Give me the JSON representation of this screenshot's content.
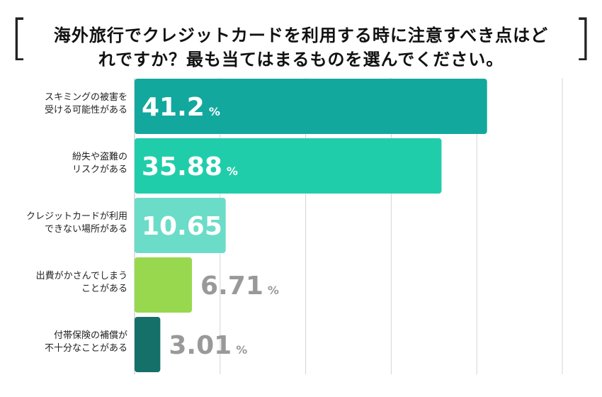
{
  "title": {
    "line1": "海外旅行でクレジットカードを利用する時に注意すべき点はど",
    "line2": "れですか？最も当てはまるものを選んでください。",
    "bracket_open": "[",
    "bracket_close": "]"
  },
  "chart_data": {
    "type": "bar",
    "orientation": "horizontal",
    "categories": [
      [
        "スキミングの被害を",
        "受ける可能性がある"
      ],
      [
        "紛失や盗難の",
        "リスクがある"
      ],
      [
        "クレジットカードが利用",
        "できない場所がある"
      ],
      [
        "出費がかさんでしまう",
        "ことがある"
      ],
      [
        "付帯保険の補償が",
        "不十分なことがある"
      ]
    ],
    "values": [
      41.2,
      35.88,
      10.65,
      6.71,
      3.01
    ],
    "value_labels": [
      "41.2",
      "35.88",
      "10.65",
      "6.71",
      "3.01"
    ],
    "unit": "%",
    "xlim": [
      0,
      50
    ],
    "grid": true,
    "colors": [
      "#12a89e",
      "#20cdaa",
      "#6bdcc8",
      "#98d84e",
      "#157069"
    ],
    "label_inside": [
      true,
      true,
      true,
      false,
      false
    ],
    "inside_label_color": "#ffffff",
    "outside_label_color": "#999999"
  }
}
